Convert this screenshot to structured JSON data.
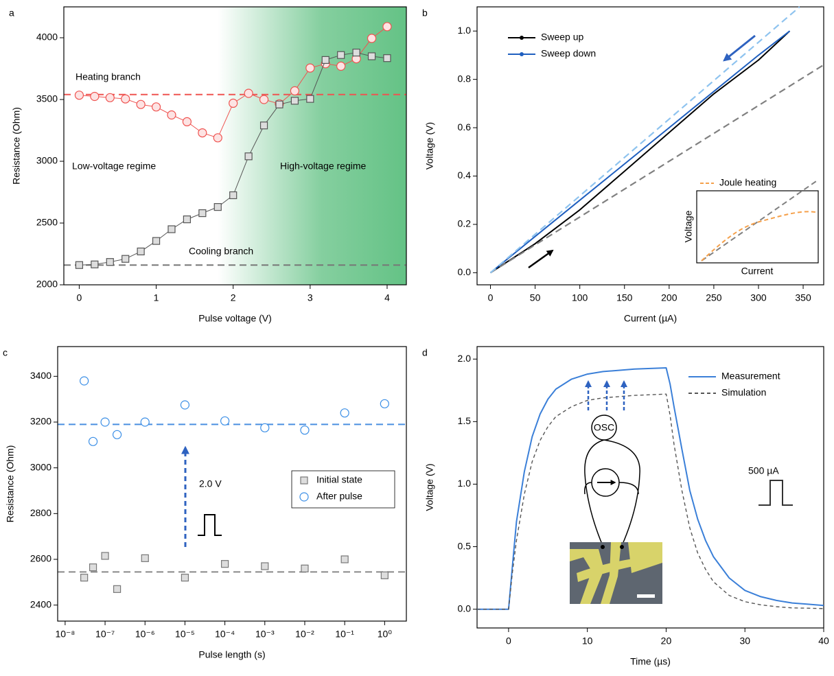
{
  "chart_data": [
    {
      "type": "line",
      "panel_label": "a",
      "xlabel": "Pulse voltage (V)",
      "ylabel": "Resistance (Ohm)",
      "xlim": [
        -0.2,
        4.25
      ],
      "ylim": [
        2000,
        4250
      ],
      "xticks": [
        0,
        1,
        2,
        3,
        4
      ],
      "yticks": [
        2000,
        2500,
        3000,
        3500,
        4000
      ],
      "shade_from": 1.8,
      "shade_color": "#5cbf7f",
      "x": [
        0,
        0.2,
        0.4,
        0.6,
        0.8,
        1.0,
        1.2,
        1.4,
        1.6,
        1.8,
        2.0,
        2.2,
        2.4,
        2.6,
        2.8,
        3.0,
        3.2,
        3.4,
        3.6,
        3.8,
        4.0
      ],
      "series": [
        {
          "color": "#ef5350",
          "marker": "circle",
          "marker_fill": "#fde3e3",
          "values": [
            3535,
            3525,
            3515,
            3505,
            3460,
            3440,
            3375,
            3320,
            3230,
            3190,
            3470,
            3550,
            3500,
            3465,
            3570,
            3755,
            3790,
            3770,
            3830,
            3995,
            4090
          ]
        },
        {
          "color": "#555555",
          "marker": "square",
          "marker_fill": "#dddddd",
          "values": [
            2160,
            2165,
            2185,
            2210,
            2270,
            2355,
            2450,
            2530,
            2580,
            2630,
            2725,
            3040,
            3290,
            3460,
            3490,
            3505,
            3820,
            3860,
            3880,
            3850,
            3835
          ]
        }
      ],
      "hlines": [
        {
          "value": 3540,
          "color": "#ef5350"
        },
        {
          "value": 2160,
          "color": "#777777"
        }
      ],
      "annotations": [
        {
          "text": "Heating branch",
          "color": "#ef5350"
        },
        {
          "text": "Low-voltage regime",
          "color": "#6cbf82"
        },
        {
          "text": "High-voltage regime",
          "color": "#2e7d4f"
        },
        {
          "text": "Cooling branch",
          "color": "#808080"
        }
      ]
    },
    {
      "type": "line",
      "panel_label": "b",
      "xlabel": "Current (µA)",
      "ylabel": "Voltage (V)",
      "xlim": [
        -15,
        373
      ],
      "ylim": [
        -0.05,
        1.1
      ],
      "xticks": [
        0,
        50,
        100,
        150,
        200,
        250,
        300,
        350
      ],
      "yticks": [
        {
          "value": 0,
          "label": "0.0"
        },
        0.2,
        0.4,
        0.6,
        0.8,
        {
          "value": 1,
          "label": "1.0"
        }
      ],
      "series": [
        {
          "name": "Sweep up",
          "color": "#000000",
          "x": [
            0,
            50,
            100,
            150,
            200,
            250,
            300,
            335
          ],
          "values": [
            0,
            0.12,
            0.26,
            0.42,
            0.58,
            0.74,
            0.88,
            1.0
          ]
        },
        {
          "name": "Sweep down",
          "color": "#1f5fbf",
          "x": [
            0,
            100,
            200,
            300,
            335
          ],
          "values": [
            0,
            0.3,
            0.6,
            0.9,
            1.0
          ]
        },
        {
          "color": "#808080",
          "dash": true,
          "x": [
            0,
            373
          ],
          "values": [
            0,
            0.86
          ]
        },
        {
          "color": "#8ec3ef",
          "dash": true,
          "x": [
            0,
            346
          ],
          "values": [
            0,
            1.1
          ]
        }
      ],
      "inset": {
        "legend": "Joule heating",
        "xlabel": "Current",
        "ylabel": "Voltage"
      }
    },
    {
      "type": "scatter",
      "panel_label": "c",
      "xlabel": "Pulse length (s)",
      "ylabel": "Resistance (Ohm)",
      "xscale": "log",
      "xlim": [
        6.5e-09,
        3.5
      ],
      "ylim": [
        2330,
        3530
      ],
      "xticks": [
        {
          "value": 1e-08,
          "label": "10⁻⁸"
        },
        {
          "value": 1e-07,
          "label": "10⁻⁷"
        },
        {
          "value": 1e-06,
          "label": "10⁻⁶"
        },
        {
          "value": 1e-05,
          "label": "10⁻⁵"
        },
        {
          "value": 0.0001,
          "label": "10⁻⁴"
        },
        {
          "value": 0.001,
          "label": "10⁻³"
        },
        {
          "value": 0.01,
          "label": "10⁻²"
        },
        {
          "value": 0.1,
          "label": "10⁻¹"
        },
        {
          "value": 1,
          "label": "10⁰"
        }
      ],
      "yticks": [
        2400,
        2600,
        2800,
        3000,
        3200,
        3400
      ],
      "x": [
        3e-08,
        5e-08,
        1e-07,
        2e-07,
        1e-06,
        1e-05,
        0.0001,
        0.001,
        0.01,
        0.1,
        1
      ],
      "series": [
        {
          "name": "Initial state",
          "color": "#777777",
          "marker": "square",
          "marker_fill": "#dddddd",
          "values": [
            2520,
            2565,
            2615,
            2470,
            2605,
            2520,
            2580,
            2570,
            2560,
            2600,
            2530
          ]
        },
        {
          "name": "After pulse",
          "color": "#3a8ee6",
          "marker": "circle",
          "marker_fill": "#ffffff",
          "values": [
            3380,
            3115,
            3200,
            3145,
            3200,
            3275,
            3205,
            3175,
            3165,
            3240,
            3280
          ]
        }
      ],
      "hlines": [
        {
          "value": 3190,
          "color": "#4a8fe0"
        },
        {
          "value": 2545,
          "color": "#888888"
        }
      ],
      "annotations": [
        {
          "text": "2.0 V",
          "color": "#000000"
        }
      ]
    },
    {
      "type": "line",
      "panel_label": "d",
      "xlabel": "Time (µs)",
      "ylabel": "Voltage (V)",
      "xlim": [
        -4,
        40
      ],
      "ylim": [
        -0.15,
        2.1
      ],
      "xticks": [
        0,
        10,
        20,
        30,
        40
      ],
      "yticks": [
        {
          "value": 0,
          "label": "0.0"
        },
        0.5,
        {
          "value": 1,
          "label": "1.0"
        },
        1.5,
        {
          "value": 2,
          "label": "2.0"
        }
      ],
      "x": [
        -4,
        -1,
        0,
        0.5,
        1,
        2,
        3,
        4,
        5,
        6,
        8,
        10,
        12,
        14,
        16,
        18,
        20,
        20.5,
        21,
        22,
        23,
        24,
        25,
        26,
        28,
        30,
        32,
        34,
        36,
        38,
        40
      ],
      "series": [
        {
          "name": "Measurement",
          "color": "#3a7fd8",
          "values": [
            0,
            0,
            0,
            0.35,
            0.7,
            1.1,
            1.38,
            1.56,
            1.68,
            1.76,
            1.84,
            1.88,
            1.9,
            1.91,
            1.92,
            1.925,
            1.93,
            1.8,
            1.62,
            1.28,
            0.95,
            0.72,
            0.55,
            0.42,
            0.25,
            0.15,
            0.1,
            0.07,
            0.05,
            0.04,
            0.03
          ]
        },
        {
          "name": "Simulation",
          "color": "#555555",
          "dash": true,
          "values": [
            0,
            0,
            0,
            0.3,
            0.55,
            0.92,
            1.18,
            1.35,
            1.46,
            1.54,
            1.62,
            1.67,
            1.69,
            1.7,
            1.71,
            1.715,
            1.72,
            1.55,
            1.32,
            0.95,
            0.65,
            0.45,
            0.32,
            0.22,
            0.11,
            0.06,
            0.035,
            0.02,
            0.01,
            0.008,
            0.005
          ]
        }
      ],
      "annotations": [
        {
          "text": "500 µA",
          "color": "#333333"
        }
      ],
      "inset": {
        "label": "OSC"
      }
    }
  ]
}
